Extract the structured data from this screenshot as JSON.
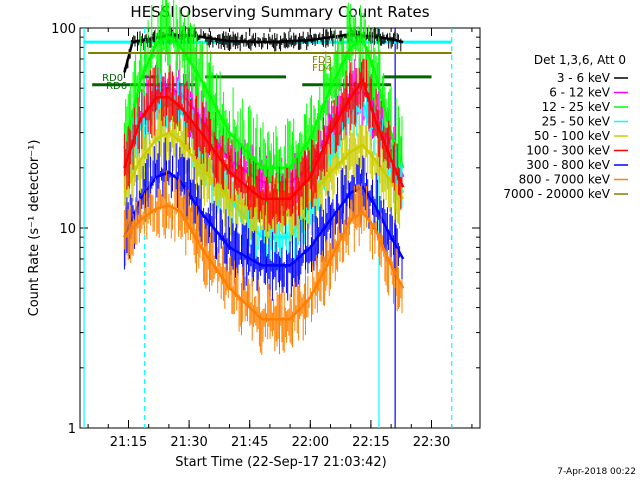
{
  "chart_data": {
    "type": "line",
    "title": "HESSI Observing Summary Count Rates",
    "xlabel": "Start Time (22-Sep-17 21:03:42)",
    "ylabel": "Count Rate (s⁻¹ detector⁻¹)",
    "ylog": true,
    "ylim": [
      1,
      100
    ],
    "xlim_minutes": [
      21.05,
      22.7
    ],
    "x_ticks": [
      "21:15",
      "21:30",
      "21:45",
      "22:00",
      "22:15",
      "22:30"
    ],
    "y_ticks": [
      "1",
      "10",
      "100"
    ],
    "legend_title": "Det 1,3,6, Att 0",
    "legend_placement": "right",
    "timestamp": "7-Apr-2018 00:22",
    "series": [
      {
        "name": "3 - 6 keV",
        "color": "#000000",
        "x": [
          "21:14",
          "21:16",
          "21:20",
          "21:25",
          "21:30",
          "21:40",
          "21:50",
          "22:00",
          "22:05",
          "22:10",
          "22:15",
          "22:20",
          "22:23"
        ],
        "values": [
          60,
          85,
          88,
          92,
          92,
          86,
          85,
          87,
          90,
          93,
          91,
          88,
          85
        ]
      },
      {
        "name": "6 - 12 keV",
        "color": "#ff00ff",
        "x": [
          "21:14",
          "21:18",
          "21:22",
          "21:25",
          "21:28",
          "21:33",
          "21:40",
          "21:48",
          "21:55",
          "22:00",
          "22:05",
          "22:10",
          "22:13",
          "22:16",
          "22:20",
          "22:23"
        ],
        "values": [
          20,
          35,
          48,
          50,
          47,
          35,
          22,
          17,
          17,
          20,
          32,
          46,
          48,
          40,
          26,
          18
        ]
      },
      {
        "name": "12 - 25 keV",
        "color": "#00ff00",
        "x": [
          "21:14",
          "21:18",
          "21:22",
          "21:25",
          "21:28",
          "21:33",
          "21:40",
          "21:48",
          "21:55",
          "22:00",
          "22:05",
          "22:10",
          "22:13",
          "22:16",
          "22:20",
          "22:23"
        ],
        "values": [
          25,
          55,
          85,
          90,
          80,
          55,
          30,
          20,
          20,
          28,
          50,
          80,
          88,
          60,
          30,
          20
        ]
      },
      {
        "name": "25 - 50 keV",
        "color": "#00ffff",
        "x": [
          "21:14",
          "21:18",
          "21:22",
          "21:25",
          "21:28",
          "21:33",
          "21:40",
          "21:48",
          "21:55",
          "22:00",
          "22:05",
          "22:10",
          "22:13",
          "22:16",
          "22:20",
          "22:23"
        ],
        "values": [
          20,
          32,
          40,
          42,
          38,
          25,
          14,
          9,
          9,
          13,
          24,
          38,
          42,
          32,
          20,
          15
        ]
      },
      {
        "name": "50 - 100 keV",
        "color": "#cccc00",
        "x": [
          "21:14",
          "21:18",
          "21:22",
          "21:25",
          "21:28",
          "21:33",
          "21:40",
          "21:48",
          "21:55",
          "22:00",
          "22:05",
          "22:10",
          "22:13",
          "22:16",
          "22:20",
          "22:23"
        ],
        "values": [
          15,
          22,
          28,
          30,
          27,
          20,
          14,
          12,
          12,
          14,
          19,
          24,
          26,
          22,
          17,
          14
        ]
      },
      {
        "name": "100 - 300 keV",
        "color": "#ff0000",
        "x": [
          "21:14",
          "21:18",
          "21:22",
          "21:25",
          "21:28",
          "21:33",
          "21:40",
          "21:48",
          "21:55",
          "22:00",
          "22:05",
          "22:10",
          "22:13",
          "22:16",
          "22:20",
          "22:23"
        ],
        "values": [
          20,
          35,
          45,
          45,
          40,
          30,
          19,
          14,
          14,
          18,
          30,
          45,
          55,
          35,
          22,
          16
        ]
      },
      {
        "name": "300 - 800 keV",
        "color": "#0000ff",
        "x": [
          "21:14",
          "21:18",
          "21:22",
          "21:25",
          "21:28",
          "21:33",
          "21:40",
          "21:48",
          "21:55",
          "22:00",
          "22:05",
          "22:10",
          "22:13",
          "22:16",
          "22:20",
          "22:23"
        ],
        "values": [
          9,
          14,
          18,
          19,
          17,
          12,
          8,
          6.5,
          6.5,
          8,
          11,
          15,
          16,
          13,
          9,
          7
        ]
      },
      {
        "name": "800 - 7000 keV",
        "color": "#ff8000",
        "x": [
          "21:14",
          "21:18",
          "21:22",
          "21:25",
          "21:28",
          "21:33",
          "21:40",
          "21:48",
          "21:55",
          "22:00",
          "22:05",
          "22:10",
          "22:13",
          "22:16",
          "22:20",
          "22:23"
        ],
        "values": [
          9,
          11,
          12.5,
          13,
          12,
          8,
          5,
          3.5,
          3.5,
          4.5,
          7,
          11,
          12,
          10,
          6.5,
          5
        ]
      },
      {
        "name": "7000 - 20000 keV",
        "color": "#808000",
        "x": [
          "21:05",
          "22:35"
        ],
        "values": [
          75,
          75
        ]
      }
    ],
    "annotations": [
      {
        "label": "RD6",
        "color": "#006400",
        "y": 52,
        "from": "21:06",
        "to": "21:12"
      },
      {
        "label": "RD0",
        "color": "#006400",
        "y": 57,
        "from": "21:05",
        "to": "21:13"
      },
      {
        "label": "FD3",
        "color": "#808000",
        "y": 70,
        "from": "21:57",
        "to": "22:02"
      },
      {
        "label": "FD4",
        "color": "#808000",
        "y": 64,
        "from": "21:57",
        "to": "22:02"
      }
    ],
    "eclipse_bar": {
      "color": "#00ffff",
      "y": 85,
      "segments": [
        [
          "21:04",
          "22:35"
        ]
      ]
    },
    "saa_bar": {
      "color": "#006400",
      "y": 57,
      "segments": [
        [
          "21:18",
          "21:22"
        ],
        [
          "21:34",
          "21:54"
        ],
        [
          "22:18",
          "22:30"
        ]
      ]
    },
    "saa_bar2": {
      "color": "#006400",
      "y": 52,
      "segments": [
        [
          "21:06",
          "21:32"
        ],
        [
          "21:58",
          "22:20"
        ]
      ]
    },
    "vertical_markers": [
      {
        "x": "21:04",
        "color": "#00ffff",
        "style": "solid"
      },
      {
        "x": "21:19",
        "color": "#00ffff",
        "style": "dashed"
      },
      {
        "x": "22:17",
        "color": "#00ffff",
        "style": "solid"
      },
      {
        "x": "22:21",
        "color": "#0000ff",
        "style": "solid"
      },
      {
        "x": "22:35",
        "color": "#00ffff",
        "style": "dashed"
      }
    ]
  }
}
